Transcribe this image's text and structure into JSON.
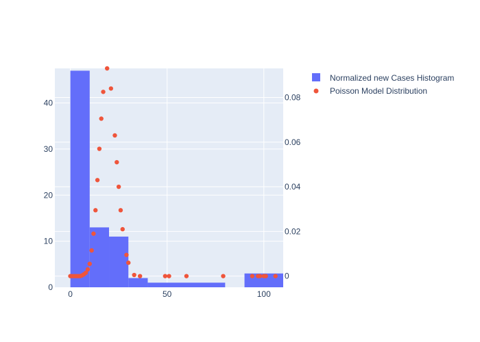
{
  "chart_data": {
    "type": "bar",
    "title": "",
    "xlabel": "",
    "ylabel": "",
    "grid": true,
    "legend_position": "top-right",
    "colors": {
      "histogram": "#636efa",
      "poisson": "#ef553b",
      "plot_bg": "#e5ecf6"
    },
    "x_axis": {
      "range": [
        -8,
        110
      ],
      "ticks": [
        0,
        50,
        100
      ]
    },
    "y_axis_left": {
      "range": [
        0,
        47.5
      ],
      "ticks": [
        0,
        10,
        20,
        30,
        40
      ]
    },
    "y_axis_right": {
      "range": [
        -0.005,
        0.093
      ],
      "ticks": [
        0,
        0.02,
        0.04,
        0.06,
        0.08
      ]
    },
    "series": [
      {
        "name": "Normalized new Cases Histogram",
        "type": "bar",
        "axis": "left",
        "bins": [
          {
            "x0": 0,
            "x1": 10,
            "value": 47
          },
          {
            "x0": 10,
            "x1": 20,
            "value": 13
          },
          {
            "x0": 20,
            "x1": 30,
            "value": 11
          },
          {
            "x0": 30,
            "x1": 40,
            "value": 2
          },
          {
            "x0": 40,
            "x1": 80,
            "value": 1
          },
          {
            "x0": 80,
            "x1": 90,
            "value": 0
          },
          {
            "x0": 90,
            "x1": 110,
            "value": 3
          }
        ]
      },
      {
        "name": "Poisson Model Distribution",
        "type": "scatter",
        "axis": "right",
        "points": [
          [
            0,
            0
          ],
          [
            1,
            0
          ],
          [
            2,
            0
          ],
          [
            3,
            0
          ],
          [
            4,
            0
          ],
          [
            5,
            0
          ],
          [
            6,
            0.0003
          ],
          [
            7,
            0.0008
          ],
          [
            8,
            0.0015
          ],
          [
            9,
            0.003
          ],
          [
            10,
            0.0055
          ],
          [
            11,
            0.0115
          ],
          [
            12,
            0.019
          ],
          [
            13,
            0.0295
          ],
          [
            14,
            0.043
          ],
          [
            15,
            0.057
          ],
          [
            16,
            0.0705
          ],
          [
            17,
            0.0825
          ],
          [
            19,
            0.093
          ],
          [
            21,
            0.084
          ],
          [
            23,
            0.063
          ],
          [
            24,
            0.051
          ],
          [
            25,
            0.04
          ],
          [
            26,
            0.0295
          ],
          [
            27,
            0.021
          ],
          [
            29,
            0.0095
          ],
          [
            30,
            0.006
          ],
          [
            33,
            0.0005
          ],
          [
            36,
            0
          ],
          [
            49,
            0
          ],
          [
            51,
            0
          ],
          [
            60,
            0
          ],
          [
            79,
            0
          ],
          [
            94,
            0
          ],
          [
            97,
            0
          ],
          [
            98,
            0
          ],
          [
            100,
            0
          ],
          [
            101,
            0
          ],
          [
            106,
            0
          ]
        ]
      }
    ]
  }
}
